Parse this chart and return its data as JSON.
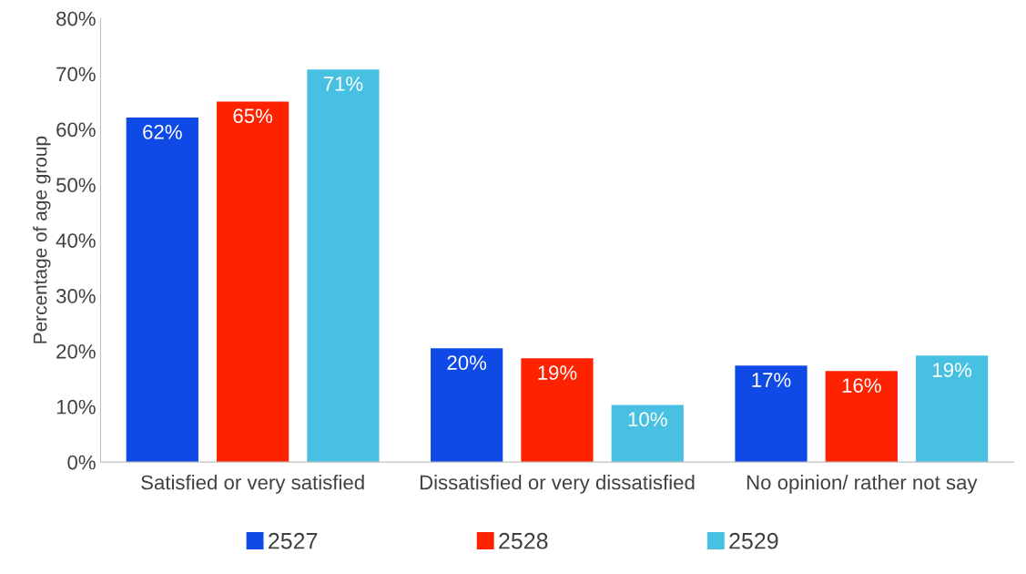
{
  "chart_data": {
    "type": "bar",
    "ylabel": "Percentage of age group",
    "categories": [
      "Satisfied or very satisfied",
      "Dissatisfied or very dissatisfied",
      "No opinion/ rather not say"
    ],
    "series": [
      {
        "name": "2527",
        "color": "#0f4ae6",
        "values": [
          62.1,
          20.5,
          17.4
        ],
        "value_labels": [
          "62%",
          "20%",
          "17%"
        ]
      },
      {
        "name": "2528",
        "color": "#ff2200",
        "values": [
          65.0,
          18.7,
          16.4
        ],
        "value_labels": [
          "65%",
          "19%",
          "16%"
        ]
      },
      {
        "name": "2529",
        "color": "#48c0e2",
        "values": [
          70.8,
          10.3,
          19.2
        ],
        "value_labels": [
          "71%",
          "10%",
          "19%"
        ]
      }
    ],
    "ylim": [
      0,
      80
    ],
    "yticks": [
      {
        "value": 0,
        "label": "0%"
      },
      {
        "value": 10,
        "label": "10%"
      },
      {
        "value": 20,
        "label": "20%"
      },
      {
        "value": 30,
        "label": "30%"
      },
      {
        "value": 40,
        "label": "40%"
      },
      {
        "value": 50,
        "label": "50%"
      },
      {
        "value": 60,
        "label": "60%"
      },
      {
        "value": 70,
        "label": "70%"
      },
      {
        "value": 80,
        "label": "80%"
      }
    ],
    "grid": false,
    "legend": "bottom"
  }
}
